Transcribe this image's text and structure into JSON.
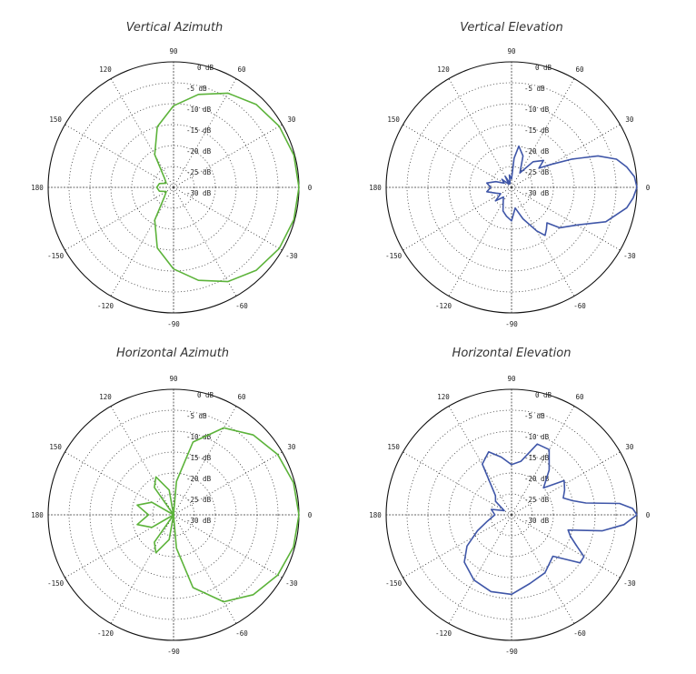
{
  "figure": {
    "chart_titles": [
      "Vertical Azimuth",
      "Vertical Elevation",
      "Horizontal Azimuth",
      "Horizontal Elevation"
    ]
  },
  "chart_data": [
    {
      "type": "polar",
      "title": "Vertical Azimuth",
      "color": "#5cb33a",
      "theta_ticks": [
        "90",
        "60",
        "30",
        "0",
        "-30",
        "-60",
        "-90",
        "-120",
        "-150",
        "180",
        "150",
        "120"
      ],
      "r_labels": [
        "0 dB",
        "-5 dB",
        "-10 dB",
        "-15 dB",
        "-20 dB",
        "-25 dB",
        "-30 dB"
      ],
      "r_range_db": [
        -30,
        0
      ],
      "grid": true,
      "series": [
        {
          "points": [
            [
              0,
              0
            ],
            [
              15,
              -0.2
            ],
            [
              30,
              -0.8
            ],
            [
              45,
              -2
            ],
            [
              60,
              -4
            ],
            [
              75,
              -7
            ],
            [
              90,
              -10.5
            ],
            [
              105,
              -15
            ],
            [
              120,
              -21
            ],
            [
              135,
              -27
            ],
            [
              150,
              -28
            ],
            [
              165,
              -26.5
            ],
            [
              180,
              -26
            ],
            [
              195,
              -26.5
            ],
            [
              210,
              -28
            ],
            [
              225,
              -27
            ],
            [
              240,
              -21
            ],
            [
              255,
              -15
            ],
            [
              270,
              -10.5
            ],
            [
              285,
              -7
            ],
            [
              300,
              -4
            ],
            [
              315,
              -2
            ],
            [
              330,
              -0.8
            ],
            [
              345,
              -0.2
            ],
            [
              360,
              0
            ]
          ]
        }
      ]
    },
    {
      "type": "polar",
      "title": "Vertical Elevation",
      "color": "#3f56a8",
      "theta_ticks": [
        "90",
        "60",
        "30",
        "0",
        "-30",
        "-60",
        "-90",
        "-120",
        "-150",
        "180",
        "150",
        "120"
      ],
      "r_labels": [
        "0 dB",
        "-5 dB",
        "-10 dB",
        "-15 dB",
        "-20 dB",
        "-25 dB",
        "-30 dB"
      ],
      "r_range_db": [
        -30,
        0
      ],
      "grid": true,
      "series": [
        {
          "points": [
            [
              0,
              0
            ],
            [
              5,
              -0.5
            ],
            [
              10,
              -2
            ],
            [
              15,
              -4
            ],
            [
              20,
              -8
            ],
            [
              25,
              -14
            ],
            [
              30,
              -19
            ],
            [
              35,
              -22
            ],
            [
              40,
              -20
            ],
            [
              50,
              -22
            ],
            [
              60,
              -26
            ],
            [
              70,
              -22
            ],
            [
              80,
              -20
            ],
            [
              85,
              -23
            ],
            [
              90,
              -28
            ],
            [
              100,
              -27
            ],
            [
              110,
              -29
            ],
            [
              120,
              -27
            ],
            [
              130,
              -29
            ],
            [
              140,
              -27
            ],
            [
              150,
              -28
            ],
            [
              160,
              -26
            ],
            [
              170,
              -24
            ],
            [
              180,
              -25
            ],
            [
              190,
              -24
            ],
            [
              200,
              -26
            ],
            [
              210,
              -27
            ],
            [
              220,
              -25
            ],
            [
              230,
              -27
            ],
            [
              240,
              -26
            ],
            [
              250,
              -24
            ],
            [
              260,
              -23
            ],
            [
              270,
              -22
            ],
            [
              280,
              -25
            ],
            [
              290,
              -22
            ],
            [
              300,
              -18
            ],
            [
              305,
              -16
            ],
            [
              310,
              -17
            ],
            [
              315,
              -18
            ],
            [
              320,
              -15
            ],
            [
              330,
              -12
            ],
            [
              340,
              -6
            ],
            [
              350,
              -2
            ],
            [
              355,
              -0.8
            ],
            [
              360,
              0
            ]
          ]
        }
      ]
    },
    {
      "type": "polar",
      "title": "Horizontal Azimuth",
      "color": "#5cb33a",
      "theta_ticks": [
        "90",
        "60",
        "30",
        "0",
        "-30",
        "-60",
        "-90",
        "-120",
        "-150",
        "180",
        "150",
        "120"
      ],
      "r_labels": [
        "0 dB",
        "-5 dB",
        "-10 dB",
        "-15 dB",
        "-20 dB",
        "-25 dB",
        "-30 dB"
      ],
      "r_range_db": [
        -30,
        0
      ],
      "grid": true,
      "series": [
        {
          "points": [
            [
              0,
              0
            ],
            [
              15,
              -0.3
            ],
            [
              30,
              -1.2
            ],
            [
              45,
              -3
            ],
            [
              60,
              -6
            ],
            [
              75,
              -12
            ],
            [
              85,
              -22
            ],
            [
              90,
              -30
            ],
            [
              100,
              -24
            ],
            [
              115,
              -20
            ],
            [
              125,
              -22
            ],
            [
              135,
              -30
            ],
            [
              150,
              -24
            ],
            [
              165,
              -21
            ],
            [
              180,
              -24
            ],
            [
              195,
              -21
            ],
            [
              210,
              -24
            ],
            [
              225,
              -30
            ],
            [
              235,
              -22
            ],
            [
              245,
              -20
            ],
            [
              260,
              -24
            ],
            [
              270,
              -30
            ],
            [
              275,
              -22
            ],
            [
              285,
              -12
            ],
            [
              300,
              -6
            ],
            [
              315,
              -3
            ],
            [
              330,
              -1.2
            ],
            [
              345,
              -0.3
            ],
            [
              360,
              0
            ]
          ]
        }
      ]
    },
    {
      "type": "polar",
      "title": "Horizontal Elevation",
      "color": "#3f56a8",
      "theta_ticks": [
        "90",
        "60",
        "30",
        "0",
        "-30",
        "-60",
        "-90",
        "-120",
        "-150",
        "180",
        "150",
        "120"
      ],
      "r_labels": [
        "0 dB",
        "-5 dB",
        "-10 dB",
        "-15 dB",
        "-20 dB",
        "-25 dB",
        "-30 dB"
      ],
      "r_range_db": [
        -30,
        0
      ],
      "grid": true,
      "series": [
        {
          "points": [
            [
              0,
              0
            ],
            [
              3,
              -1
            ],
            [
              6,
              -4
            ],
            [
              9,
              -12
            ],
            [
              13,
              -15
            ],
            [
              18,
              -17
            ],
            [
              25,
              -16
            ],
            [
              33,
              -15
            ],
            [
              40,
              -20
            ],
            [
              50,
              -16
            ],
            [
              60,
              -12
            ],
            [
              70,
              -12
            ],
            [
              80,
              -17
            ],
            [
              90,
              -18
            ],
            [
              100,
              -16
            ],
            [
              110,
              -14
            ],
            [
              120,
              -16
            ],
            [
              130,
              -24
            ],
            [
              140,
              -25
            ],
            [
              150,
              -28
            ],
            [
              165,
              -25
            ],
            [
              180,
              -26
            ],
            [
              195,
              -24
            ],
            [
              205,
              -21
            ],
            [
              215,
              -17
            ],
            [
              225,
              -14
            ],
            [
              240,
              -12
            ],
            [
              255,
              -11
            ],
            [
              270,
              -11
            ],
            [
              285,
              -13
            ],
            [
              300,
              -14
            ],
            [
              315,
              -16
            ],
            [
              325,
              -10
            ],
            [
              330,
              -10
            ],
            [
              335,
              -13
            ],
            [
              340,
              -15
            ],
            [
              345,
              -16
            ],
            [
              350,
              -8
            ],
            [
              355,
              -3
            ],
            [
              360,
              0
            ]
          ]
        }
      ]
    }
  ]
}
